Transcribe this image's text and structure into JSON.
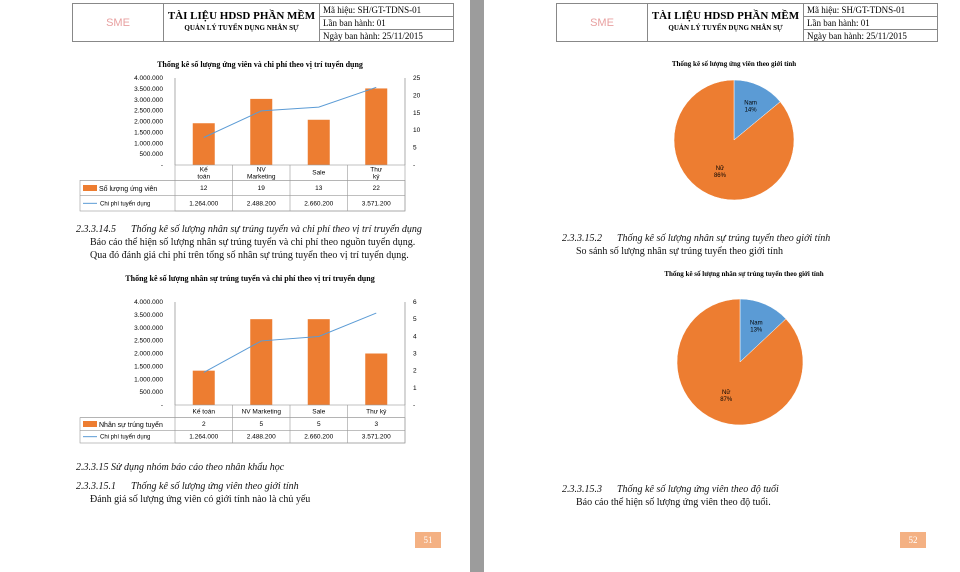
{
  "header": {
    "logo": "SME",
    "title": "TÀI LIỆU HDSD PHẦN MỀM",
    "subtitle": "QUẢN LÝ TUYỂN DỤNG NHÂN SỰ",
    "code": "Mã hiệu: SH/GT-TDNS-01",
    "edition": "Lần ban hành: 01",
    "date": "Ngày ban hành: 25/11/2015"
  },
  "page1": {
    "sec1_num": "2.3.3.14.5",
    "sec1_title": "Thống kê số lượng nhân sự trúng tuyển và chi phí theo vị trí truyển dụng",
    "sec1_p1": "Báo cáo thể hiện số lượng nhân sự trúng tuyển và chi phí theo nguồn tuyển dụng.",
    "sec1_p2": "Qua đó đánh giá chi phí trên tổng số nhân sự trúng tuyển theo vị trí tuyển dụng.",
    "sec2": "2.3.3.15 Sử dụng nhóm báo cáo theo nhân khẩu học",
    "sec3_num": "2.3.3.15.1",
    "sec3_title": "Thống kê số lượng ứng viên theo giới tính",
    "sec3_p": "Đánh giá số lượng ứng viên có giới tính nào là chủ yếu",
    "page_number": "51"
  },
  "page2": {
    "sec1_num": "2.3.3.15.2",
    "sec1_title": "Thống kê số lượng nhân sự trúng tuyển theo giới tính",
    "sec1_p": "So sánh số lượng nhân sự trúng tuyển theo giới tính",
    "sec2_num": "2.3.3.15.3",
    "sec2_title": "Thống kê số lượng ứng viên theo độ tuổi",
    "sec2_p": "Báo cáo thể hiện số lượng ứng viên theo độ tuổi.",
    "page_number": "52"
  },
  "chart_data": [
    {
      "type": "bar",
      "title": "Thống kê số lượng ứng viên và chi phí theo vị trí tuyển dụng",
      "categories": [
        "Kế toán",
        "NV Marketing",
        "Sale",
        "Thư ký"
      ],
      "series": [
        {
          "name": "Số lượng ứng viên",
          "kind": "bar",
          "axis": "right",
          "values": [
            12,
            19,
            13,
            22
          ],
          "labels": [
            "12",
            "19",
            "13",
            "22"
          ]
        },
        {
          "name": "Chi phí tuyển dụng",
          "kind": "line",
          "axis": "left",
          "values": [
            1264000,
            2488200,
            2660200,
            3571200
          ],
          "labels": [
            "1.264.000",
            "2.488.200",
            "2.660.200",
            "3.571.200"
          ]
        }
      ],
      "left_ticks": [
        "4.000.000",
        "3.500.000",
        "3.000.000",
        "2.500.000",
        "2.000.000",
        "1.500.000",
        "1.000.000",
        "500.000",
        "-"
      ],
      "ylim": [
        0,
        4000000
      ],
      "right_ticks": [
        "25",
        "20",
        "15",
        "10",
        "5",
        "-"
      ],
      "y2lim": [
        0,
        25
      ]
    },
    {
      "type": "bar",
      "title": "Thống kê số lượng nhân sự trúng tuyển và chi phí theo vị trí truyển dụng",
      "categories": [
        "Kế toán",
        "NV Marketing",
        "Sale",
        "Thư ký"
      ],
      "series": [
        {
          "name": "Nhân sự trúng tuyển",
          "kind": "bar",
          "axis": "right",
          "values": [
            2,
            5,
            5,
            3
          ],
          "labels": [
            "2",
            "5",
            "5",
            "3"
          ]
        },
        {
          "name": "Chi phí tuyển dụng",
          "kind": "line",
          "axis": "left",
          "values": [
            1264000,
            2488200,
            2660200,
            3571200
          ],
          "labels": [
            "1.264.000",
            "2.488.200",
            "2.660.200",
            "3.571.200"
          ]
        }
      ],
      "left_ticks": [
        "4.000.000",
        "3.500.000",
        "3.000.000",
        "2.500.000",
        "2.000.000",
        "1.500.000",
        "1.000.000",
        "500.000",
        "-"
      ],
      "ylim": [
        0,
        4000000
      ],
      "right_ticks": [
        "6",
        "5",
        "4",
        "3",
        "2",
        "1",
        "-"
      ],
      "y2lim": [
        0,
        6
      ]
    },
    {
      "type": "pie",
      "title": "Thống kê số lượng ứng viên theo giới tính",
      "slices": [
        {
          "name": "Nam",
          "value": 14,
          "label": "14%",
          "color": "#5b9bd5"
        },
        {
          "name": "Nữ",
          "value": 86,
          "label": "86%",
          "color": "#ed7d31"
        }
      ]
    },
    {
      "type": "pie",
      "title": "Thống kê số lượng nhân sự trúng tuyển theo giới tính",
      "slices": [
        {
          "name": "Nam",
          "value": 13,
          "label": "13%",
          "color": "#5b9bd5"
        },
        {
          "name": "Nữ",
          "value": 87,
          "label": "87%",
          "color": "#ed7d31"
        }
      ]
    }
  ],
  "colors": {
    "bar": "#ed7d31",
    "line": "#5b9bd5",
    "page_number_bg": "#f4b183"
  }
}
